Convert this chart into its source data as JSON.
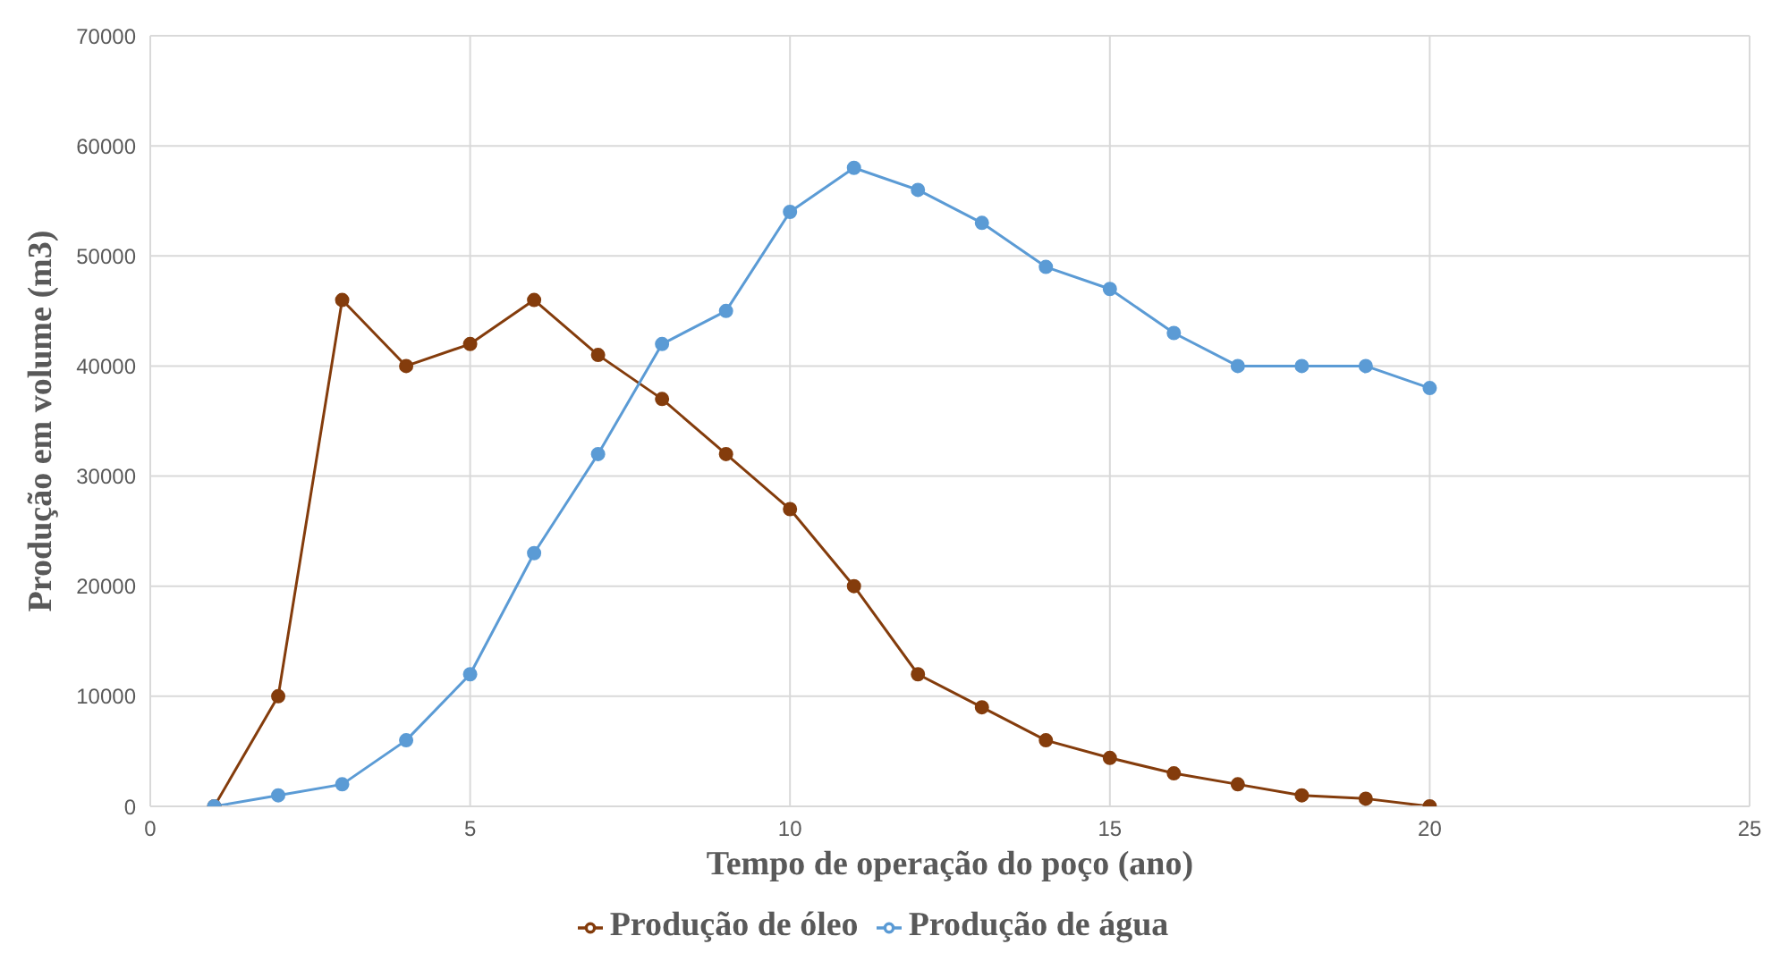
{
  "chart_data": {
    "type": "line",
    "xlabel": "Tempo de operação do poço (ano)",
    "ylabel": "Produção em volume (m3)",
    "x": [
      1,
      2,
      3,
      4,
      5,
      6,
      7,
      8,
      9,
      10,
      11,
      12,
      13,
      14,
      15,
      16,
      17,
      18,
      19,
      20
    ],
    "series": [
      {
        "name": "Produção de óleo",
        "color": "#843c0c",
        "values": [
          0,
          10000,
          46000,
          40000,
          42000,
          46000,
          41000,
          37000,
          32000,
          27000,
          20000,
          12000,
          9000,
          6000,
          4400,
          3000,
          2000,
          1000,
          700,
          0
        ]
      },
      {
        "name": "Produção de água",
        "color": "#5b9bd5",
        "values": [
          0,
          1000,
          2000,
          6000,
          12000,
          23000,
          32000,
          42000,
          45000,
          54000,
          58000,
          56000,
          53000,
          49000,
          47000,
          43000,
          40000,
          40000,
          40000,
          38000
        ]
      }
    ],
    "xlim": [
      0,
      25
    ],
    "xticks": [
      0,
      5,
      10,
      15,
      20,
      25
    ],
    "ylim": [
      0,
      70000
    ],
    "yticks": [
      0,
      10000,
      20000,
      30000,
      40000,
      50000,
      60000,
      70000
    ],
    "grid": true,
    "legend": "bottom",
    "marker": "circle"
  }
}
